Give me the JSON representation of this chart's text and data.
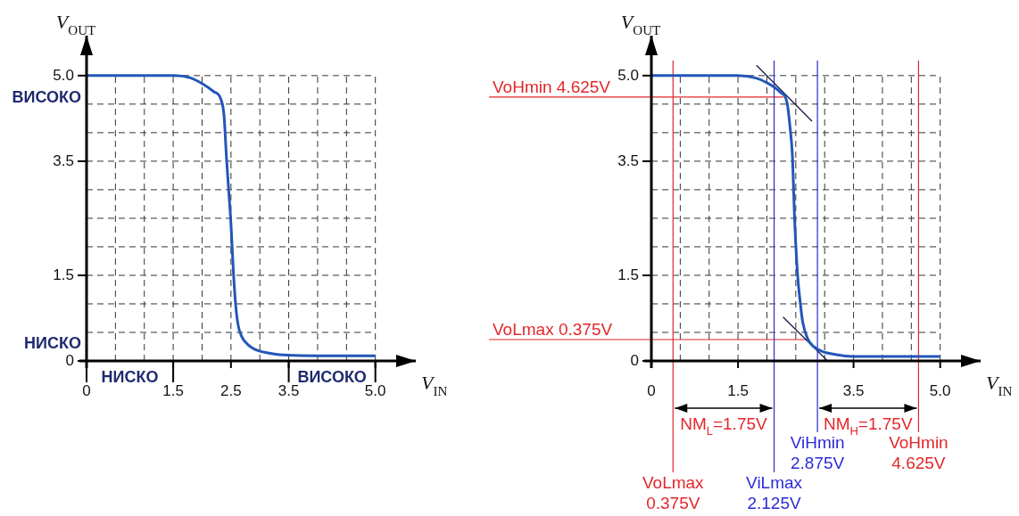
{
  "chart_data": [
    {
      "type": "line",
      "xlabel": "V$_{IN}$",
      "ylabel": "V$_{OUT}$",
      "xlim": [
        0,
        5.7
      ],
      "ylim": [
        0,
        5.7
      ],
      "grid": true,
      "marker": "none",
      "xticks": [
        0,
        {
          "value": 0.5,
          "label": null
        },
        {
          "value": 1,
          "label": null
        },
        1.5,
        {
          "value": 2,
          "label": null
        },
        2.5,
        {
          "value": 3,
          "label": null
        },
        3.5,
        {
          "value": 4,
          "label": null
        },
        {
          "value": 4.5,
          "label": null
        },
        {
          "value": 5,
          "label": "5.0"
        }
      ],
      "yticks": [
        0,
        {
          "value": 0.5,
          "label": null
        },
        {
          "value": 1,
          "label": null
        },
        1.5,
        {
          "value": 2,
          "label": null
        },
        {
          "value": 2.5,
          "label": null
        },
        {
          "value": 3,
          "label": null
        },
        3.5,
        {
          "value": 4,
          "label": null
        },
        {
          "value": 4.5,
          "label": null
        },
        {
          "value": 5,
          "label": "5.0"
        }
      ],
      "series": [
        {
          "color": "#2356b8",
          "x": [
            0,
            1.5,
            1.8,
            2.0,
            2.2,
            2.32,
            2.38,
            2.42,
            2.46,
            2.5,
            2.54,
            2.58,
            2.62,
            2.68,
            2.8,
            2.97,
            3.2,
            3.49,
            4,
            5
          ],
          "values": [
            5,
            5,
            4.96,
            4.86,
            4.72,
            4.6,
            4.3,
            3.6,
            3.0,
            2.4,
            1.6,
            1.0,
            0.65,
            0.44,
            0.28,
            0.18,
            0.13,
            0.1,
            0.09,
            0.09
          ]
        }
      ],
      "annotations": [
        "ВИСОКО",
        "НИСКО",
        "НИСКО",
        "ВИСОКО"
      ]
    },
    {
      "type": "line",
      "xlabel": "V$_{IN}$",
      "ylabel": "V$_{OUT}$",
      "xlim": [
        0,
        5.7
      ],
      "ylim": [
        0,
        5.7
      ],
      "grid": true,
      "marker": "none",
      "xticks": [
        0,
        {
          "value": 0.5,
          "label": null
        },
        {
          "value": 1,
          "label": null
        },
        1.5,
        {
          "value": 2,
          "label": null
        },
        {
          "value": 2.5,
          "label": null
        },
        {
          "value": 3,
          "label": null
        },
        3.5,
        {
          "value": 4,
          "label": null
        },
        {
          "value": 4.5,
          "label": null
        },
        {
          "value": 5,
          "label": "5.0"
        }
      ],
      "yticks": [
        0,
        {
          "value": 0.5,
          "label": null
        },
        {
          "value": 1,
          "label": null
        },
        1.5,
        {
          "value": 2,
          "label": null
        },
        {
          "value": 2.5,
          "label": null
        },
        {
          "value": 3,
          "label": null
        },
        3.5,
        {
          "value": 4,
          "label": null
        },
        {
          "value": 4.5,
          "label": null
        },
        {
          "value": 5,
          "label": "5.0"
        }
      ],
      "series": [
        {
          "color": "#2356b8",
          "x": [
            0,
            1.49,
            1.8,
            1.99,
            2.23,
            2.35,
            2.4,
            2.44,
            2.48,
            2.53,
            2.58,
            2.62,
            2.71,
            2.8,
            2.95,
            3.2,
            3.48,
            5
          ],
          "values": [
            5,
            5,
            4.96,
            4.88,
            4.71,
            4.52,
            4.1,
            3.62,
            2.48,
            1.52,
            1.0,
            0.68,
            0.38,
            0.26,
            0.17,
            0.11,
            0.08,
            0.08
          ]
        },
        {
          "color": "#1a1a4a",
          "x": [
            1.82,
            2.78
          ],
          "values": [
            5.18,
            4.2
          ]
        },
        {
          "color": "#1a1a4a",
          "x": [
            2.28,
            3.05
          ],
          "values": [
            0.77,
            0
          ]
        }
      ],
      "ref_lines": [
        {
          "axis": "y",
          "value": 4.625,
          "label": "VoHmin 4.625V",
          "color": "#e3262a"
        },
        {
          "axis": "y",
          "value": 0.375,
          "label": "VoLmax 0.375V",
          "color": "#e3262a"
        },
        {
          "axis": "x",
          "value": 0.375,
          "label": "VoLmax 0.375V",
          "color": "#e3262a"
        },
        {
          "axis": "x",
          "value": 2.125,
          "label": "ViLmax 2.125V",
          "color": "#2b2bd6"
        },
        {
          "axis": "x",
          "value": 2.875,
          "label": "ViHmin 2.875V",
          "color": "#2b2bd6"
        },
        {
          "axis": "x",
          "value": 4.625,
          "label": "VoHmin 4.625V",
          "color": "#e3262a"
        }
      ],
      "annotations": [
        "NM$_{L}$=1.75V",
        "NM$_{H}$=1.75V"
      ]
    }
  ]
}
